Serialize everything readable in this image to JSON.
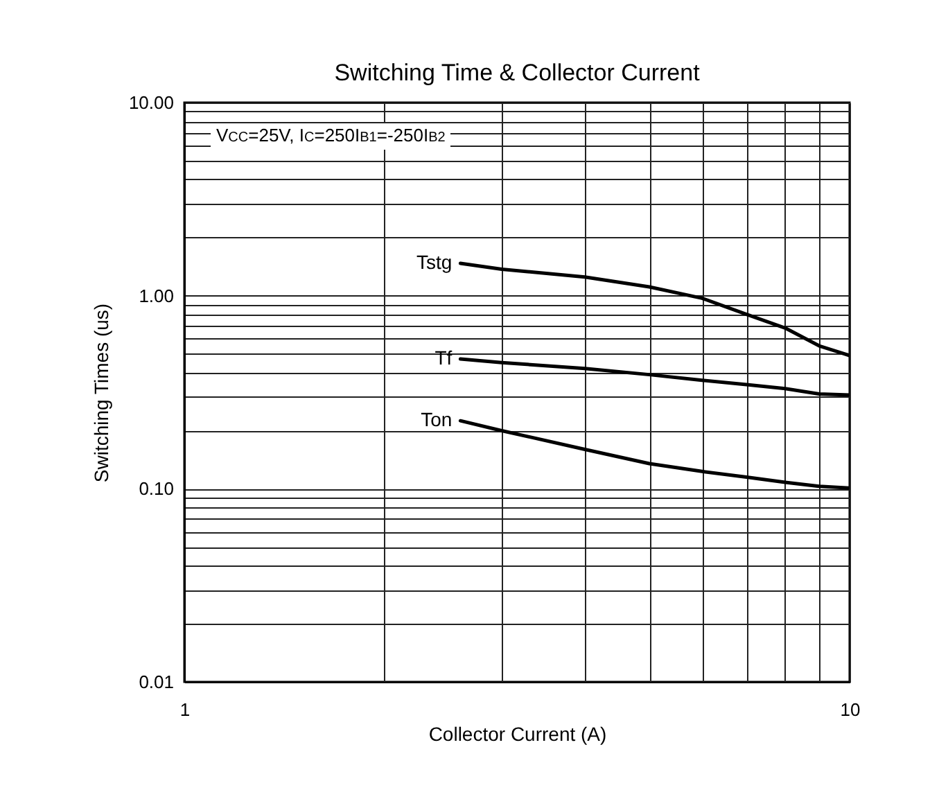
{
  "chart_data": {
    "type": "line",
    "title": "Switching Time & Collector Current",
    "xlabel": "Collector Current (A)",
    "ylabel": "Switching Times (us)",
    "annotations": [
      "V$_{CC}$=25V, I$_{C}$=250I$_{B1}$=-250I$_{B2}$"
    ],
    "x": [
      2.6,
      3,
      4,
      5,
      6,
      7,
      8,
      9,
      10
    ],
    "series": [
      {
        "name": "Tstg",
        "color": "#000000",
        "values": [
          1.47,
          1.37,
          1.25,
          1.11,
          0.97,
          0.8,
          0.68,
          0.55,
          0.49
        ]
      },
      {
        "name": "Tf",
        "color": "#000000",
        "values": [
          0.47,
          0.45,
          0.42,
          0.39,
          0.365,
          0.346,
          0.33,
          0.31,
          0.306
        ]
      },
      {
        "name": "Ton",
        "color": "#000000",
        "values": [
          0.225,
          0.2,
          0.16,
          0.135,
          0.123,
          0.115,
          0.108,
          0.103,
          0.101
        ]
      }
    ],
    "log": "xy",
    "xlim": [
      1,
      10
    ],
    "ylim": [
      0.01,
      10
    ],
    "xticks": [
      1,
      {
        "value": 2,
        "label": null
      },
      {
        "value": 3,
        "label": null
      },
      {
        "value": 4,
        "label": null
      },
      {
        "value": 5,
        "label": null
      },
      {
        "value": 6,
        "label": null
      },
      {
        "value": 7,
        "label": null
      },
      {
        "value": 8,
        "label": null
      },
      {
        "value": 9,
        "label": null
      },
      10
    ],
    "yticks": [
      {
        "value": 0.01,
        "label": "0.01"
      },
      {
        "value": 0.02,
        "label": null
      },
      {
        "value": 0.03,
        "label": null
      },
      {
        "value": 0.04,
        "label": null
      },
      {
        "value": 0.05,
        "label": null
      },
      {
        "value": 0.06,
        "label": null
      },
      {
        "value": 0.07,
        "label": null
      },
      {
        "value": 0.08,
        "label": null
      },
      {
        "value": 0.09,
        "label": null
      },
      {
        "value": 0.1,
        "label": "0.10"
      },
      {
        "value": 0.2,
        "label": null
      },
      {
        "value": 0.3,
        "label": null
      },
      {
        "value": 0.4,
        "label": null
      },
      {
        "value": 0.5,
        "label": null
      },
      {
        "value": 0.6,
        "label": null
      },
      {
        "value": 0.7,
        "label": null
      },
      {
        "value": 0.8,
        "label": null
      },
      {
        "value": 0.9,
        "label": null
      },
      {
        "value": 1,
        "label": "1.00"
      },
      {
        "value": 2,
        "label": null
      },
      {
        "value": 3,
        "label": null
      },
      {
        "value": 4,
        "label": null
      },
      {
        "value": 5,
        "label": null
      },
      {
        "value": 6,
        "label": null
      },
      {
        "value": 7,
        "label": null
      },
      {
        "value": 8,
        "label": null
      },
      {
        "value": 9,
        "label": null
      },
      {
        "value": 10,
        "label": "10.00"
      }
    ],
    "grid": true,
    "legend": false,
    "marker": "none",
    "line_style": "solid"
  }
}
